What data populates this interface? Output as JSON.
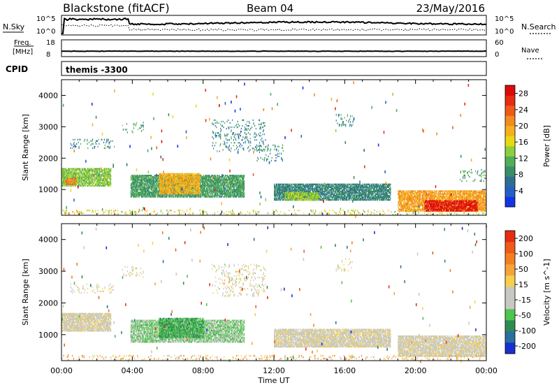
{
  "header": {
    "station": "Blackstone (fitACF)",
    "beam": "Beam 04",
    "date": "23/May/2016"
  },
  "top_panel": {
    "left_label": "N.Sky",
    "right_label": "N.Search",
    "left_ticks": [
      "10^5",
      "10^0"
    ],
    "right_ticks": [
      "10^5",
      "10^0"
    ]
  },
  "freq_panel": {
    "left_label_1": "Freq.",
    "left_label_2": "[MHz]",
    "right_label": "Nave",
    "left_ticks": [
      "18",
      "8"
    ],
    "right_ticks": [
      "60",
      "0"
    ]
  },
  "cpid": {
    "label": "CPID",
    "value": "themis -3300"
  },
  "x_axis": {
    "label": "Time UT",
    "ticks": [
      "00:00",
      "04:00",
      "08:00",
      "12:00",
      "16:00",
      "20:00",
      "00:00"
    ]
  },
  "chart_data": [
    {
      "type": "heatmap",
      "title": "",
      "xlabel": "",
      "ylabel": "Slant Range [km]",
      "x_ticks": [
        "00:00",
        "04:00",
        "08:00",
        "12:00",
        "16:00",
        "20:00",
        "00:00"
      ],
      "y_ticks": [
        1000,
        2000,
        3000,
        4000
      ],
      "xlim_hours": [
        0,
        24
      ],
      "ylim_km": [
        180,
        4500
      ],
      "colorbar": {
        "label": "Power [dB]",
        "ticks": [
          "4",
          "8",
          "12",
          "16",
          "20",
          "24",
          "28"
        ],
        "colors": [
          "#1533e6",
          "#245fc6",
          "#2f6e91",
          "#3a8c6a",
          "#4fae57",
          "#8fd03a",
          "#e8d915",
          "#f5b020",
          "#f28c1e",
          "#ef5a18",
          "#e62c12",
          "#dd0a0a"
        ],
        "range": [
          0,
          30
        ]
      },
      "echo_regions": [
        {
          "t0": 0.0,
          "t1": 2.8,
          "r0": 1100,
          "r1": 1650,
          "v": 13
        },
        {
          "t0": 0.2,
          "t1": 0.8,
          "r0": 1150,
          "r1": 1350,
          "v": 22
        },
        {
          "t0": 3.9,
          "t1": 10.3,
          "r0": 750,
          "r1": 1450,
          "v": 10
        },
        {
          "t0": 5.5,
          "t1": 7.8,
          "r0": 850,
          "r1": 1500,
          "v": 19
        },
        {
          "t0": 12.0,
          "t1": 18.6,
          "r0": 650,
          "r1": 1150,
          "v": 8
        },
        {
          "t0": 12.6,
          "t1": 14.5,
          "r0": 650,
          "r1": 900,
          "v": 14
        },
        {
          "t0": 19.0,
          "t1": 24.0,
          "r0": 300,
          "r1": 950,
          "v": 20
        },
        {
          "t0": 20.5,
          "t1": 23.5,
          "r0": 300,
          "r1": 650,
          "v": 28
        }
      ],
      "sparse_regions": [
        {
          "t0": 0.5,
          "t1": 3.0,
          "r0": 2300,
          "r1": 2600,
          "v": 8
        },
        {
          "t0": 3.4,
          "t1": 4.6,
          "r0": 2800,
          "r1": 3150,
          "v": 10
        },
        {
          "t0": 8.5,
          "t1": 11.5,
          "r0": 2200,
          "r1": 3200,
          "v": 8
        },
        {
          "t0": 11.0,
          "t1": 12.5,
          "r0": 1900,
          "r1": 2400,
          "v": 8
        },
        {
          "t0": 15.5,
          "t1": 16.5,
          "r0": 3000,
          "r1": 3400,
          "v": 8
        },
        {
          "t0": 22.5,
          "t1": 24.0,
          "r0": 1250,
          "r1": 1650,
          "v": 10
        },
        {
          "t0": 0.0,
          "t1": 24.0,
          "r0": 180,
          "r1": 350,
          "v": 16
        }
      ]
    },
    {
      "type": "heatmap",
      "title": "",
      "xlabel": "Time UT",
      "ylabel": "Slant Range [km]",
      "x_ticks": [
        "00:00",
        "04:00",
        "08:00",
        "12:00",
        "16:00",
        "20:00",
        "00:00"
      ],
      "y_ticks": [
        1000,
        2000,
        3000,
        4000
      ],
      "xlim_hours": [
        0,
        24
      ],
      "ylim_km": [
        180,
        4500
      ],
      "colorbar": {
        "label": "Velocity [m s^-1]",
        "ticks": [
          "200",
          "100",
          "50",
          "15",
          "-15",
          "-50",
          "-100",
          "-200"
        ],
        "colors": [
          "#1a2fcf",
          "#2a6fa0",
          "#2e8c52",
          "#4fc44f",
          "#c8c8c2",
          "#c8c8c2",
          "#f6d04a",
          "#f5a43a",
          "#f2801e",
          "#ef5a18",
          "#e62c12"
        ],
        "range": [
          -250,
          250
        ]
      },
      "echo_regions": [
        {
          "t0": 0.0,
          "t1": 2.8,
          "r0": 1100,
          "r1": 1650,
          "v": 0
        },
        {
          "t0": 3.9,
          "t1": 10.3,
          "r0": 750,
          "r1": 1450,
          "v": -70
        },
        {
          "t0": 5.5,
          "t1": 8.0,
          "r0": 900,
          "r1": 1500,
          "v": -110
        },
        {
          "t0": 12.0,
          "t1": 18.6,
          "r0": 600,
          "r1": 1150,
          "v": 0
        },
        {
          "t0": 19.0,
          "t1": 24.0,
          "r0": 300,
          "r1": 950,
          "v": 0
        }
      ],
      "sparse_regions": [
        {
          "t0": 0.5,
          "t1": 3.0,
          "r0": 2300,
          "r1": 2600,
          "v": 5
        },
        {
          "t0": 3.4,
          "t1": 4.6,
          "r0": 2800,
          "r1": 3150,
          "v": 0
        },
        {
          "t0": 8.5,
          "t1": 11.5,
          "r0": 2200,
          "r1": 3200,
          "v": 0
        },
        {
          "t0": 15.5,
          "t1": 16.5,
          "r0": 3000,
          "r1": 3400,
          "v": 0
        },
        {
          "t0": 0.0,
          "t1": 24.0,
          "r0": 180,
          "r1": 350,
          "v": 60
        }
      ]
    }
  ]
}
